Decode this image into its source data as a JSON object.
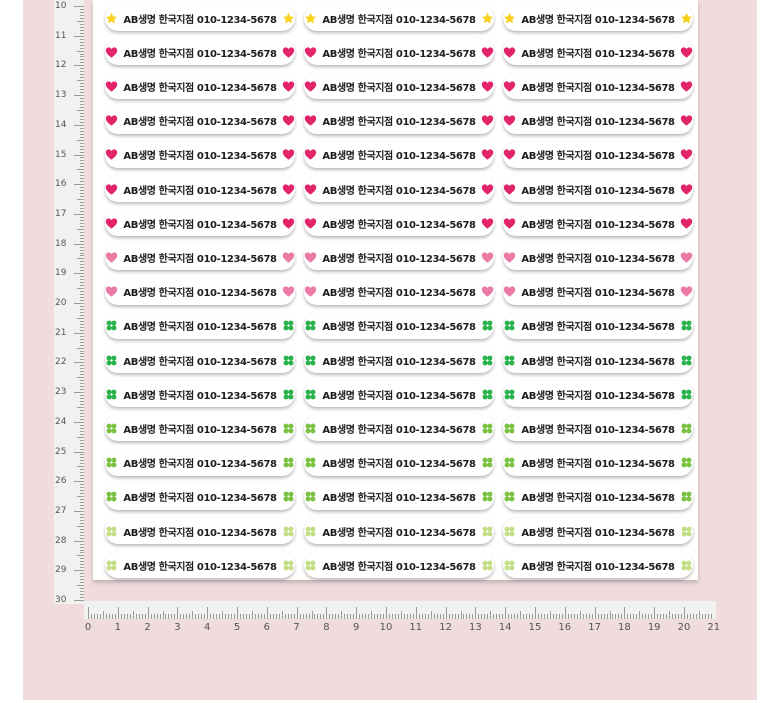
{
  "sticker_text": "AB생명 한국지점 010-1234-5678",
  "colors": {
    "background_pink": "#f0dcdd",
    "star": "#f7d11c",
    "heart_dark": "#e2246a",
    "heart_light": "#eb7aa6",
    "clover_dark": "#2bb24c",
    "clover_mid": "#7cc242",
    "clover_light": "#c3df86"
  },
  "rows": [
    {
      "icon": "star-icon",
      "tone": "star"
    },
    {
      "icon": "heart-icon",
      "tone": "heart_dark"
    },
    {
      "icon": "heart-icon",
      "tone": "heart_dark"
    },
    {
      "icon": "heart-icon",
      "tone": "heart_dark"
    },
    {
      "icon": "heart-icon",
      "tone": "heart_dark"
    },
    {
      "icon": "heart-icon",
      "tone": "heart_dark"
    },
    {
      "icon": "heart-icon",
      "tone": "heart_dark"
    },
    {
      "icon": "heart-icon",
      "tone": "heart_light"
    },
    {
      "icon": "heart-icon",
      "tone": "heart_light"
    },
    {
      "icon": "clover-icon",
      "tone": "clover_dark"
    },
    {
      "icon": "clover-icon",
      "tone": "clover_dark"
    },
    {
      "icon": "clover-icon",
      "tone": "clover_dark"
    },
    {
      "icon": "clover-icon",
      "tone": "clover_mid"
    },
    {
      "icon": "clover-icon",
      "tone": "clover_mid"
    },
    {
      "icon": "clover-icon",
      "tone": "clover_mid"
    },
    {
      "icon": "clover-icon",
      "tone": "clover_light"
    },
    {
      "icon": "clover-icon",
      "tone": "clover_light"
    }
  ],
  "vertical_ruler_labels": [
    "10",
    "11",
    "12",
    "13",
    "14",
    "15",
    "16",
    "17",
    "18",
    "19",
    "20",
    "21",
    "22",
    "23",
    "24",
    "25",
    "26",
    "27",
    "28",
    "29",
    "30"
  ],
  "horizontal_ruler_labels": [
    "0",
    "1",
    "2",
    "3",
    "4",
    "5",
    "6",
    "7",
    "8",
    "9",
    "10",
    "11",
    "12",
    "13",
    "14",
    "15",
    "16",
    "17",
    "18",
    "19",
    "20",
    "21"
  ]
}
